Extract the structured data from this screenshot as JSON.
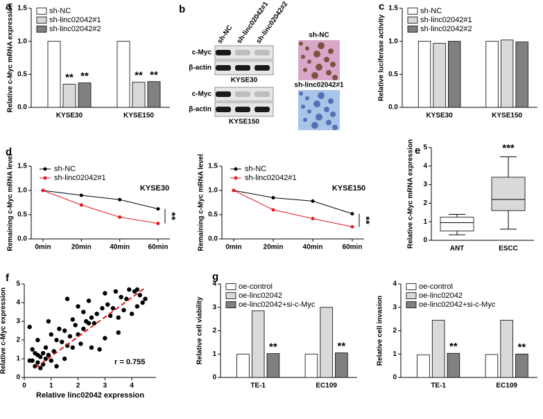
{
  "chart_data": [
    {
      "type": "bar",
      "label": "a",
      "ylabel": "Relative c-Myc mRNA expression",
      "categories": [
        "KYSE30",
        "KYSE150"
      ],
      "series": [
        {
          "name": "sh-NC",
          "color": "#ffffff",
          "values": [
            1.0,
            1.0
          ]
        },
        {
          "name": "sh-linc02042#1",
          "color": "#d9d9d9",
          "values": [
            0.35,
            0.38
          ],
          "significance": [
            "**",
            "**"
          ]
        },
        {
          "name": "sh-linc02042#2",
          "color": "#808080",
          "values": [
            0.37,
            0.39
          ],
          "significance": [
            "**",
            "**"
          ]
        }
      ],
      "ylim": [
        0,
        1.5
      ],
      "yticks": [
        {
          "value": 0,
          "label": "0.0"
        },
        0.5,
        {
          "value": 1,
          "label": "1.0"
        },
        1.5
      ]
    },
    {
      "type": "blot",
      "label": "b",
      "lanes": [
        "sh-NC",
        "sh-linc02042#1",
        "sh-linc02042#2"
      ],
      "blots": [
        {
          "rows": [
            "c-Myc",
            "β-actin"
          ],
          "name": "KYSE30"
        },
        {
          "rows": [
            "c-Myc",
            "β-actin"
          ],
          "name": "KYSE150"
        }
      ],
      "ihc": [
        "sh-NC",
        "sh-linc02042#1"
      ]
    },
    {
      "type": "bar",
      "label": "c",
      "ylabel": "Relative luciferase activity",
      "categories": [
        "KYSE30",
        "KYSE150"
      ],
      "series": [
        {
          "name": "sh-NC",
          "color": "#ffffff",
          "values": [
            1.0,
            1.0
          ]
        },
        {
          "name": "sh-linc02042#1",
          "color": "#d9d9d9",
          "values": [
            0.97,
            1.02
          ]
        },
        {
          "name": "sh-linc02042#2",
          "color": "#808080",
          "values": [
            1.0,
            0.99
          ]
        }
      ],
      "ylim": [
        0,
        1.5
      ],
      "yticks": [
        {
          "value": 0,
          "label": "0.0"
        },
        0.5,
        {
          "value": 1,
          "label": "1.0"
        },
        1.5
      ]
    },
    {
      "type": "line",
      "label": "d",
      "title": "KYSE30",
      "ylabel": "Remaining c-Myc mRNA level",
      "categories": [
        "0min",
        "20min",
        "40min",
        "60min"
      ],
      "series": [
        {
          "name": "sh-NC",
          "color": "#000000",
          "values": [
            1.0,
            0.9,
            0.81,
            0.62
          ]
        },
        {
          "name": "sh-linc02042#1",
          "color": "#e41a1c",
          "values": [
            1.0,
            0.7,
            0.45,
            0.32
          ]
        }
      ],
      "significance": "**",
      "ylim": [
        0,
        1.5
      ],
      "yticks": [
        {
          "value": 0,
          "label": "0.0"
        },
        0.5,
        {
          "value": 1,
          "label": "1.0"
        },
        1.5
      ]
    },
    {
      "type": "line",
      "title": "KYSE150",
      "ylabel": "Remaining c-Myc mRNA level",
      "categories": [
        "0min",
        "20min",
        "40min",
        "60min"
      ],
      "series": [
        {
          "name": "sh-NC",
          "color": "#000000",
          "values": [
            1.0,
            0.85,
            0.78,
            0.52
          ]
        },
        {
          "name": "sh-linc02042#1",
          "color": "#e41a1c",
          "values": [
            1.0,
            0.6,
            0.42,
            0.25
          ]
        }
      ],
      "significance": "**",
      "ylim": [
        0,
        1.5
      ],
      "yticks": [
        {
          "value": 0,
          "label": "0.0"
        },
        0.5,
        {
          "value": 1,
          "label": "1.0"
        },
        1.5
      ]
    },
    {
      "type": "box",
      "label": "e",
      "ylabel": "Relative c-Myc mRNA expression",
      "categories": [
        "ANT",
        "ESCC"
      ],
      "boxes": [
        {
          "min": 0.3,
          "q1": 0.5,
          "median": 0.95,
          "q3": 1.25,
          "max": 1.4,
          "color": "#ffffff"
        },
        {
          "min": 0.6,
          "q1": 1.6,
          "median": 2.2,
          "q3": 3.4,
          "max": 4.5,
          "color": "#d9d9d9",
          "significance": "***"
        }
      ],
      "ylim": [
        0,
        5
      ],
      "yticks": [
        0,
        1,
        2,
        3,
        4,
        5
      ]
    },
    {
      "type": "scatter",
      "label": "f",
      "xlabel": "Relative linc02042 expression",
      "ylabel": "Relative c-Myc expression",
      "annotation": "r = 0.755",
      "color": "#000000",
      "x": [
        0.2,
        0.3,
        0.3,
        0.4,
        0.4,
        0.5,
        0.5,
        0.5,
        0.6,
        0.6,
        0.7,
        0.7,
        0.8,
        0.8,
        0.9,
        0.9,
        1.0,
        1.0,
        1.1,
        1.2,
        1.2,
        1.3,
        1.4,
        1.5,
        1.5,
        1.6,
        1.7,
        1.8,
        1.8,
        1.9,
        2.0,
        2.0,
        2.1,
        2.2,
        2.2,
        2.3,
        2.4,
        2.5,
        2.5,
        2.6,
        2.7,
        2.8,
        2.9,
        3.0,
        3.0,
        3.1,
        3.2,
        3.3,
        3.4,
        3.5,
        3.6,
        3.7,
        3.8,
        3.9,
        4.0,
        4.1,
        4.2,
        4.3,
        4.4,
        4.5,
        0.2,
        1.6,
        2.4,
        3.5,
        4.2
      ],
      "y": [
        2.7,
        1.5,
        0.9,
        1.3,
        0.6,
        1.2,
        0.8,
        2.0,
        1.1,
        0.5,
        1.3,
        0.7,
        1.0,
        1.6,
        1.2,
        3.0,
        0.9,
        2.3,
        1.4,
        2.0,
        0.6,
        2.6,
        1.9,
        2.5,
        1.0,
        4.2,
        2.2,
        3.1,
        1.6,
        2.8,
        3.8,
        2.3,
        1.8,
        3.5,
        2.6,
        3.0,
        4.1,
        3.2,
        1.6,
        2.9,
        3.4,
        1.5,
        3.7,
        4.5,
        2.1,
        3.9,
        3.3,
        3.7,
        4.6,
        2.4,
        4.3,
        3.6,
        4.2,
        4.7,
        3.4,
        4.6,
        3.8,
        4.4,
        4.0,
        4.2,
        0.9,
        1.7,
        2.9,
        3.2,
        4.7
      ],
      "trendline": {
        "x": [
          0.4,
          4.5
        ],
        "y": [
          0.5,
          4.8
        ],
        "color": "#e41a1c"
      },
      "xlim": [
        0,
        4.9
      ],
      "xticks": [
        0,
        1,
        2,
        3,
        4
      ],
      "ylim": [
        0,
        5
      ],
      "yticks": [
        0,
        1,
        2,
        3,
        4,
        5
      ]
    },
    {
      "type": "bar",
      "label": "g",
      "ylabel": "Relative cell viability",
      "categories": [
        "TE-1",
        "EC109"
      ],
      "series": [
        {
          "name": "oe-control",
          "color": "#ffffff",
          "values": [
            1.0,
            1.0
          ]
        },
        {
          "name": "oe-linc02042",
          "color": "#d9d9d9",
          "values": [
            2.85,
            3.0
          ]
        },
        {
          "name": "oe-linc02042+si-c-Myc",
          "color": "#808080",
          "values": [
            1.02,
            1.05
          ],
          "significance": [
            "**",
            "**"
          ]
        }
      ],
      "ylim": [
        0,
        4
      ],
      "yticks": [
        0,
        1,
        2,
        3,
        4
      ]
    },
    {
      "type": "bar",
      "ylabel": "Relative cell invasion",
      "categories": [
        "TE-1",
        "EC109"
      ],
      "series": [
        {
          "name": "oe-control",
          "color": "#ffffff",
          "values": [
            0.97,
            0.98
          ]
        },
        {
          "name": "oe-linc02042",
          "color": "#d9d9d9",
          "values": [
            2.45,
            2.45
          ]
        },
        {
          "name": "oe-linc02042+si-c-Myc",
          "color": "#808080",
          "values": [
            1.03,
            1.0
          ],
          "significance": [
            "**",
            "**"
          ]
        }
      ],
      "ylim": [
        0,
        4
      ],
      "yticks": [
        0,
        1,
        2,
        3,
        4
      ]
    }
  ]
}
